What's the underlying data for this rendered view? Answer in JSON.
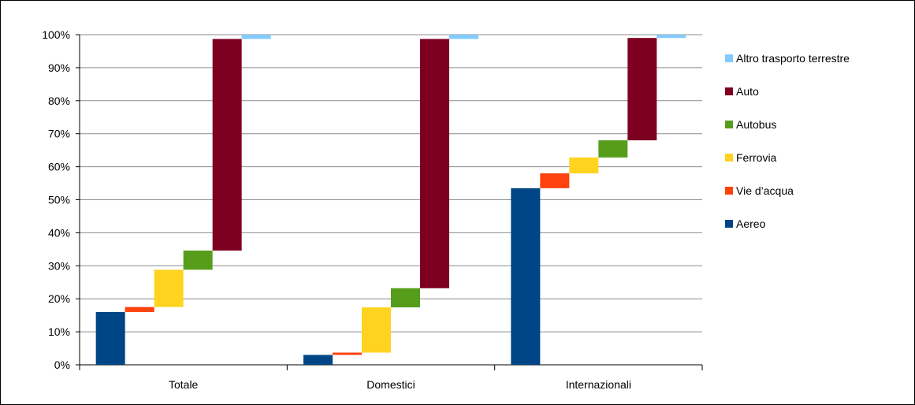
{
  "chart_data": {
    "type": "bar",
    "subtype": "stacked-waterfall",
    "categories": [
      "Totale",
      "Domestici",
      "Internazionali"
    ],
    "ylim": [
      0,
      100
    ],
    "y_ticks": [
      "0%",
      "10%",
      "20%",
      "30%",
      "40%",
      "50%",
      "60%",
      "70%",
      "80%",
      "90%",
      "100%"
    ],
    "grid": true,
    "legend_position": "right",
    "series": [
      {
        "name": "Aereo",
        "color": "#004586",
        "values": [
          16,
          3,
          53.5
        ]
      },
      {
        "name": "Vie d’acqua",
        "color": "#ff420e",
        "values": [
          1.5,
          0.7,
          4.5
        ]
      },
      {
        "name": "Ferrovia",
        "color": "#ffd320",
        "values": [
          11.3,
          13.7,
          4.8
        ]
      },
      {
        "name": "Autobus",
        "color": "#579d1c",
        "values": [
          5.8,
          5.8,
          5.2
        ]
      },
      {
        "name": "Auto",
        "color": "#7e0021",
        "values": [
          64.1,
          75.5,
          31
        ]
      },
      {
        "name": "Altro trasporto terrestre",
        "color": "#83caff",
        "values": [
          1.3,
          1.3,
          1.0
        ]
      }
    ]
  }
}
